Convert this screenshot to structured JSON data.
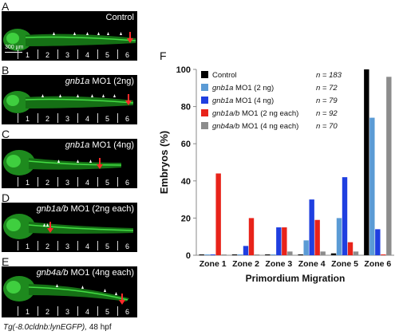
{
  "panels": [
    {
      "letter": "A",
      "title_italic": "",
      "title_plain": "Control",
      "scale": "300 µm"
    },
    {
      "letter": "B",
      "title_italic": "gnb1a",
      "title_plain": " MO1 (2ng)",
      "scale": ""
    },
    {
      "letter": "C",
      "title_italic": "gnb1a",
      "title_plain": " MO1 (4ng)",
      "scale": ""
    },
    {
      "letter": "D",
      "title_italic": "gnb1a/b",
      "title_plain": " MO1 (2ng each)",
      "scale": ""
    },
    {
      "letter": "E",
      "title_italic": "gnb4a/b",
      "title_plain": " MO1 (4ng each)",
      "scale": ""
    }
  ],
  "zone_numbers": [
    "1",
    "2",
    "3",
    "4",
    "5",
    "6"
  ],
  "caption": {
    "italic": "Tg(-8.0cldnb:lynEGFP),",
    "plain": " 48 hpf"
  },
  "chart_panel_letter": "F",
  "chart_data": {
    "type": "bar",
    "categories": [
      "Zone 1",
      "Zone 2",
      "Zone 3",
      "Zone 4",
      "Zone 5",
      "Zone 6"
    ],
    "xlabel": "Primordium Migration",
    "ylabel": "Embryos (%)",
    "ylim": [
      0,
      100
    ],
    "yticks": [
      0,
      20,
      40,
      60,
      80,
      100
    ],
    "legend_position": "top-left",
    "series": [
      {
        "name": "Control",
        "n": "n = 183",
        "color": "#000000",
        "values": [
          0,
          0,
          0,
          0,
          1,
          100
        ]
      },
      {
        "name": "gnb1a MO1 (2 ng)",
        "n": "n = 72",
        "color": "#5b9bd5",
        "values": [
          0,
          0,
          0,
          8,
          20,
          74
        ]
      },
      {
        "name": "gnb1a MO1 (4 ng)",
        "n": "n = 79",
        "color": "#1f3fe0",
        "values": [
          0,
          5,
          15,
          30,
          42,
          14
        ]
      },
      {
        "name": "gnb1a/b MO1 (2 ng each)",
        "n": "n = 92",
        "color": "#e8231a",
        "values": [
          44,
          20,
          15,
          19,
          7,
          0
        ]
      },
      {
        "name": "gnb4a/b MO1 (4 ng each)",
        "n": "n = 70",
        "color": "#8c8c8c",
        "values": [
          0,
          0,
          2,
          2,
          2,
          96
        ]
      }
    ]
  }
}
